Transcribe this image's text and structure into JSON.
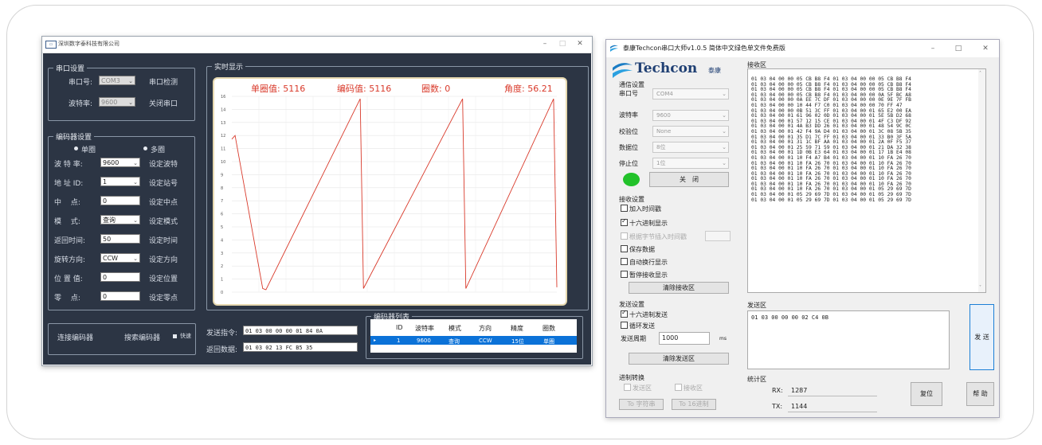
{
  "left_app": {
    "title": "深圳数字泰科技有限公司",
    "window_controls": [
      "–",
      "□",
      "✕"
    ],
    "serial": {
      "group_title": "串口设置",
      "port_label": "串口号:",
      "port_value": "COM3",
      "detect_button": "串口检测",
      "baud_label": "波特率:",
      "baud_value": "9600",
      "close_button": "关闭串口"
    },
    "encoder": {
      "group_title": "编码器设置",
      "radio_single": "单圈",
      "radio_multi": "多圈",
      "baud_label": "波 特 率:",
      "baud_value": "9600",
      "baud_button": "设定波特",
      "addr_label": "地 址 ID:",
      "addr_value": "1",
      "addr_button": "设定站号",
      "mid_label": "中　 点:",
      "mid_value": "0",
      "mid_button": "设定中点",
      "mode_label": "模　 式:",
      "mode_value": "查询",
      "mode_button": "设定模式",
      "ret_label": "返回时间:",
      "ret_value": "50",
      "ret_button": "设定时间",
      "dir_label": "旋转方向:",
      "dir_value": "CCW",
      "dir_button": "设定方向",
      "pos_label": "位 置 值:",
      "pos_value": "0",
      "pos_button": "设定位置",
      "zero_label": "零　 点:",
      "zero_value": "0",
      "zero_button": "设定零点"
    },
    "realtime": {
      "group_title": "实时显示",
      "single_value": "单圈值: 5116",
      "encoder_value": "编码值: 5116",
      "turns": "圈数: 0",
      "angle": "角度: 56.21"
    },
    "bottom": {
      "connect_button": "连接编码器",
      "search_button": "搜索编码器",
      "fast_label": "快速",
      "send_cmd_label": "发送指令:",
      "send_cmd_value": "01 03 00 00 00 01 84 0A",
      "recv_label": "返回数据:",
      "recv_value": "01 03 02 13 FC B5 35"
    },
    "encoder_list": {
      "group_title": "编码器列表",
      "columns": [
        "ID",
        "波特率",
        "模式",
        "方向",
        "精度",
        "圈数"
      ],
      "rows": [
        [
          "1",
          "9600",
          "查询",
          "CCW",
          "15位",
          "单圈"
        ]
      ]
    }
  },
  "chart_data": {
    "type": "line",
    "title": "",
    "xlabel": "",
    "ylabel": "",
    "y_ticks": [
      "16",
      "14",
      "13",
      "12",
      "11",
      "10",
      "9",
      "8",
      "7",
      "6",
      "5",
      "4",
      "3",
      "2",
      "1",
      "0"
    ],
    "ylim": [
      0,
      16
    ],
    "xlim": [
      0,
      100
    ],
    "grid": true,
    "series": [
      {
        "color": "#d93a2b",
        "x": [
          0,
          1,
          9.5,
          10.5,
          39.5,
          40.5,
          71,
          72,
          99,
          100
        ],
        "y": [
          12.5,
          12.8,
          0.3,
          0.2,
          15.8,
          0.3,
          15.8,
          0.3,
          15.8,
          0.4
        ]
      }
    ]
  },
  "right_app": {
    "title": "泰康Techcon串口大师v1.0.5 简体中文绿色单文件免费版",
    "window_controls": [
      "–",
      "□",
      "✕"
    ],
    "logo_text": "Techcon",
    "logo_sub": "泰康",
    "comm": {
      "title": "通信设置",
      "port_label": "串口号",
      "port_value": "COM4",
      "baud_label": "波特率",
      "baud_value": "9600",
      "parity_label": "校验位",
      "parity_value": "None",
      "data_label": "数据位",
      "data_value": "8位",
      "stop_label": "停止位",
      "stop_value": "1位",
      "close_button": "关　闭"
    },
    "recv_settings": {
      "title": "接收设置",
      "opt_time": "加入时间戳",
      "opt_hex": "十六进制显示",
      "opt_byte": "根据字节插入时间戳",
      "opt_save": "保存数据",
      "opt_wrap": "自动换行显示",
      "opt_pause": "暂停接收显示",
      "clear_button": "清除接收区"
    },
    "recv_area": {
      "title": "接收区",
      "lines": [
        "01 03 04 00 00 05 CB B8 F4 01 03 04 00 00 05 CB B8 F4",
        "01 03 04 00 00 05 CB B8 F4 01 03 04 00 00 05 CB B8 F4",
        "01 03 04 00 00 05 CB B8 F4 01 03 04 00 00 05 CB B8 F4",
        "01 03 04 00 00 05 CB B8 F4 01 03 04 00 00 0A 5F BC A8",
        "01 03 04 00 00 0A EE 7C DF 01 03 04 00 00 0E 9E 7F FB",
        "01 03 04 00 00 10 44 F7 C0 01 03 04 00 00 70 FF 47",
        "01 03 04 00 00 0B 51 3C FF 01 03 04 00 01 65 E2 00 EA",
        "01 03 04 00 01 61 96 02 0D 01 03 04 00 01 5E 5B D2 68",
        "01 03 04 00 01 57 12 15 CE 01 03 04 00 01 4F C3 DF 92",
        "01 03 04 00 01 4A B3 DD 26 01 03 04 00 01 48 54 9C 0C",
        "01 03 04 00 01 42 F4 9A D4 01 03 04 00 01 3C 08 5B 35",
        "01 03 04 00 01 35 D1 7C FF 01 03 04 00 01 33 B0 3F 5A",
        "01 03 04 00 01 31 1C BF AA 01 03 04 00 01 2A 0F F5 37",
        "01 03 04 00 01 25 59 71 59 01 03 04 00 01 21 DA 32 38",
        "01 03 04 00 01 1D 0B E3 64 01 03 04 00 01 17 1B E4 08",
        "01 03 04 00 01 10 F4 A7 B4 01 03 04 00 01 10 FA 26 70",
        "01 03 04 00 01 10 FA 26 70 01 03 04 00 01 10 FA 26 70",
        "01 03 04 00 01 10 FA 26 70 01 03 04 00 01 10 FA 26 70",
        "01 03 04 00 01 10 FA 26 70 01 03 04 00 01 10 FA 26 70",
        "01 03 04 00 01 10 FA 26 70 01 03 04 00 01 10 FA 26 70",
        "01 03 04 00 01 10 FA 26 70 01 03 04 00 01 10 FA 26 70",
        "01 03 04 00 01 10 FA 26 70 01 03 04 00 01 05 29 69 7D",
        "01 03 04 00 01 05 29 69 7D 01 03 04 00 01 05 29 69 7D",
        "01 03 04 00 01 05 29 69 7D 01 03 04 00 01 05 29 69 7D"
      ]
    },
    "send_settings": {
      "title": "发送设置",
      "opt_hex": "十六进制发送",
      "opt_loop": "循环发送",
      "period_label": "发送周期",
      "period_value": "1000",
      "period_unit": "ms",
      "clear_button": "清除发送区"
    },
    "send_area": {
      "title": "发送区",
      "value": "01 03 00 00 00 02 C4 0B",
      "send_button": "发 送"
    },
    "convert": {
      "title": "进制转换",
      "opt_send": "发送区",
      "opt_recv": "接收区",
      "to_str": "To 字符串",
      "to_hex": "To 16进制"
    },
    "stats": {
      "title": "统计区",
      "rx_label": "RX:",
      "rx_value": "1287",
      "tx_label": "TX:",
      "tx_value": "1144",
      "reset_button": "复位",
      "help_button": "帮 助"
    }
  }
}
